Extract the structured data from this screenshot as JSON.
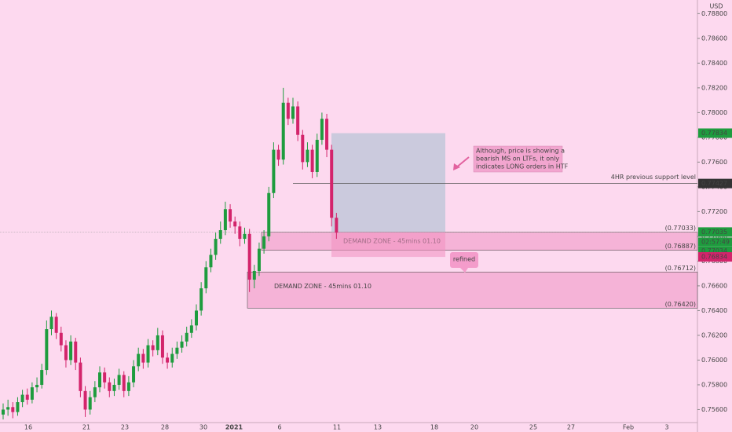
{
  "chart_data": {
    "type": "candlestick",
    "currency": "USD",
    "up_color": "#1e9c3e",
    "down_color": "#d3246b",
    "grid": false,
    "ylim": [
      0.75495,
      0.7891
    ],
    "yticks": [
      {
        "value": 0.756,
        "label": "0.75600"
      },
      {
        "value": 0.758,
        "label": "0.75800"
      },
      {
        "value": 0.76,
        "label": "0.76000"
      },
      {
        "value": 0.762,
        "label": "0.76200"
      },
      {
        "value": 0.764,
        "label": "0.76400"
      },
      {
        "value": 0.766,
        "label": "0.76600"
      },
      {
        "value": 0.768,
        "label": "0.76800"
      },
      {
        "value": 0.77,
        "label": "0.77000"
      },
      {
        "value": 0.772,
        "label": "0.77200"
      },
      {
        "value": 0.774,
        "label": "0.77400"
      },
      {
        "value": 0.776,
        "label": "0.77600"
      },
      {
        "value": 0.778,
        "label": "0.77800"
      },
      {
        "value": 0.78,
        "label": "0.78000"
      },
      {
        "value": 0.782,
        "label": "0.78200"
      },
      {
        "value": 0.784,
        "label": "0.78400"
      },
      {
        "value": 0.786,
        "label": "0.78600"
      },
      {
        "value": 0.788,
        "label": "0.78800"
      }
    ],
    "xtick_labels": [
      "16",
      "21",
      "23",
      "28",
      "30",
      "2021",
      "6",
      "11",
      "13",
      "18",
      "20",
      "25",
      "27",
      "Feb",
      "3"
    ],
    "ohlc": [
      [
        0.7556,
        0.7565,
        0.7552,
        0.756
      ],
      [
        0.756,
        0.7568,
        0.7555,
        0.7562
      ],
      [
        0.7562,
        0.7566,
        0.7553,
        0.7558
      ],
      [
        0.7558,
        0.757,
        0.7555,
        0.7566
      ],
      [
        0.7566,
        0.7576,
        0.7562,
        0.7572
      ],
      [
        0.7572,
        0.7577,
        0.7564,
        0.7568
      ],
      [
        0.7568,
        0.7582,
        0.7565,
        0.7578
      ],
      [
        0.7578,
        0.7586,
        0.7574,
        0.758
      ],
      [
        0.758,
        0.7597,
        0.7577,
        0.7592
      ],
      [
        0.7592,
        0.7632,
        0.7588,
        0.7625
      ],
      [
        0.7625,
        0.764,
        0.762,
        0.7635
      ],
      [
        0.7635,
        0.7638,
        0.7617,
        0.7622
      ],
      [
        0.7622,
        0.7627,
        0.7607,
        0.7612
      ],
      [
        0.7612,
        0.7616,
        0.7594,
        0.76
      ],
      [
        0.76,
        0.762,
        0.7596,
        0.7615
      ],
      [
        0.7615,
        0.7618,
        0.7592,
        0.7598
      ],
      [
        0.7598,
        0.7602,
        0.757,
        0.7575
      ],
      [
        0.7575,
        0.7579,
        0.7554,
        0.756
      ],
      [
        0.756,
        0.7575,
        0.7556,
        0.757
      ],
      [
        0.757,
        0.7583,
        0.7566,
        0.7578
      ],
      [
        0.7578,
        0.7595,
        0.7574,
        0.759
      ],
      [
        0.759,
        0.7594,
        0.7577,
        0.7582
      ],
      [
        0.7582,
        0.7586,
        0.757,
        0.7575
      ],
      [
        0.7575,
        0.7585,
        0.7571,
        0.758
      ],
      [
        0.758,
        0.7593,
        0.7576,
        0.7588
      ],
      [
        0.7588,
        0.7591,
        0.757,
        0.7575
      ],
      [
        0.7575,
        0.7587,
        0.7571,
        0.7582
      ],
      [
        0.7582,
        0.76,
        0.7578,
        0.7595
      ],
      [
        0.7595,
        0.761,
        0.7591,
        0.7605
      ],
      [
        0.7605,
        0.7609,
        0.7593,
        0.7598
      ],
      [
        0.7598,
        0.7617,
        0.7594,
        0.7612
      ],
      [
        0.7612,
        0.7616,
        0.7603,
        0.7608
      ],
      [
        0.7608,
        0.7626,
        0.7604,
        0.762
      ],
      [
        0.762,
        0.7624,
        0.7597,
        0.7602
      ],
      [
        0.7602,
        0.7606,
        0.7593,
        0.7598
      ],
      [
        0.7598,
        0.761,
        0.7594,
        0.7605
      ],
      [
        0.7605,
        0.7615,
        0.7601,
        0.761
      ],
      [
        0.761,
        0.762,
        0.7606,
        0.7615
      ],
      [
        0.7615,
        0.7627,
        0.7611,
        0.7622
      ],
      [
        0.7622,
        0.7633,
        0.7618,
        0.7628
      ],
      [
        0.7628,
        0.7645,
        0.7624,
        0.764
      ],
      [
        0.764,
        0.7663,
        0.7636,
        0.7658
      ],
      [
        0.7658,
        0.768,
        0.7654,
        0.7675
      ],
      [
        0.7675,
        0.769,
        0.7671,
        0.7685
      ],
      [
        0.7685,
        0.7703,
        0.7681,
        0.7698
      ],
      [
        0.7698,
        0.7712,
        0.7694,
        0.7705
      ],
      [
        0.7705,
        0.7728,
        0.7701,
        0.7722
      ],
      [
        0.7722,
        0.7726,
        0.7707,
        0.7712
      ],
      [
        0.7712,
        0.7716,
        0.7702,
        0.7708
      ],
      [
        0.7708,
        0.7712,
        0.7692,
        0.7698
      ],
      [
        0.7698,
        0.7707,
        0.7694,
        0.7702
      ],
      [
        0.7702,
        0.7706,
        0.7655,
        0.7665
      ],
      [
        0.7665,
        0.7677,
        0.7658,
        0.7672
      ],
      [
        0.7672,
        0.7695,
        0.7668,
        0.769
      ],
      [
        0.769,
        0.7705,
        0.7686,
        0.77
      ],
      [
        0.77,
        0.774,
        0.7696,
        0.7735
      ],
      [
        0.7735,
        0.7776,
        0.7731,
        0.777
      ],
      [
        0.777,
        0.7774,
        0.7757,
        0.7762
      ],
      [
        0.7762,
        0.782,
        0.7758,
        0.7808
      ],
      [
        0.7808,
        0.7812,
        0.779,
        0.7795
      ],
      [
        0.7795,
        0.7812,
        0.7791,
        0.7805
      ],
      [
        0.7805,
        0.7809,
        0.7777,
        0.7782
      ],
      [
        0.7782,
        0.7786,
        0.7754,
        0.776
      ],
      [
        0.776,
        0.7776,
        0.7756,
        0.777
      ],
      [
        0.777,
        0.7774,
        0.7747,
        0.7752
      ],
      [
        0.7752,
        0.7783,
        0.7748,
        0.7778
      ],
      [
        0.7778,
        0.78,
        0.7774,
        0.7795
      ],
      [
        0.7795,
        0.7799,
        0.7764,
        0.777
      ],
      [
        0.777,
        0.7774,
        0.7708,
        0.7715
      ],
      [
        0.7715,
        0.7719,
        0.7698,
        0.7703
      ]
    ],
    "position": {
      "target": 0.77834,
      "entry": 0.77035,
      "stop": 0.76834
    },
    "last_price": 0.77034,
    "countdown": "02:57:49",
    "support": {
      "value": 0.77427,
      "label": "4HR previous support level"
    },
    "zones": [
      {
        "top": {
          "value": 0.77033,
          "label": "(0.77033)"
        },
        "bottom": {
          "value": 0.76887,
          "label": "(0.76887)"
        },
        "label": "DEMAND ZONE - 45mins 01.10"
      },
      {
        "top": {
          "value": 0.76712,
          "label": "(0.76712)"
        },
        "bottom": {
          "value": 0.7642,
          "label": "(0.76420)"
        },
        "label": "DEMAND ZONE - 45mins 01.10"
      }
    ],
    "note": [
      "Although, price is showing a",
      "bearish MS on LTFs, it only",
      "indicates LONG orders in HTF"
    ],
    "callout": "refined"
  }
}
